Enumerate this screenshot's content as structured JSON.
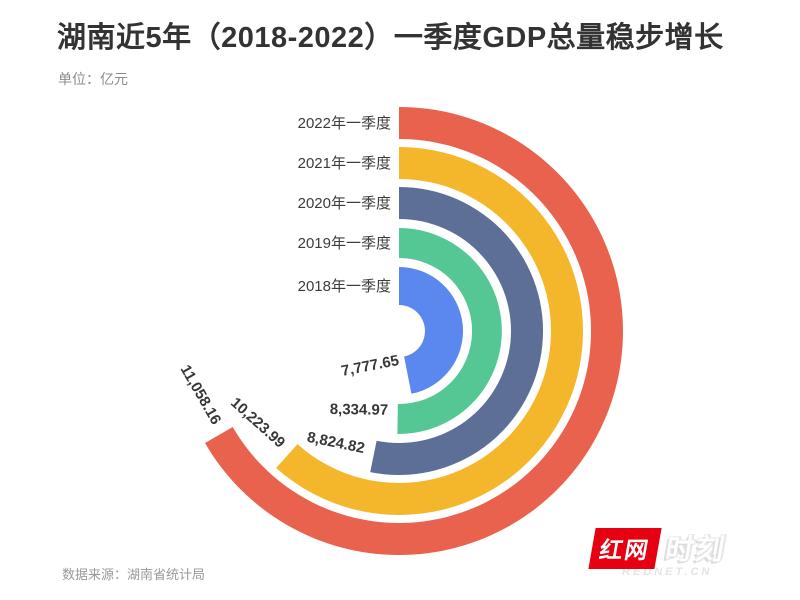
{
  "chart_data": {
    "type": "radial-bar",
    "title": "湖南近5年（2018-2022）一季度GDP总量稳步增长",
    "unit_label": "单位：亿元",
    "categories": [
      "2018年一季度",
      "2019年一季度",
      "2020年一季度",
      "2021年一季度",
      "2022年一季度"
    ],
    "values": [
      7777.65,
      8334.97,
      8824.82,
      10223.99,
      11058.16
    ],
    "value_labels": [
      "7,777.65",
      "8,334.97",
      "8,824.82",
      "10,223.99",
      "11,058.16"
    ],
    "colors": [
      "#5a88ee",
      "#55c795",
      "#5d6f97",
      "#f4b62a",
      "#e8624e"
    ],
    "ring_order": "innermost-to-outermost",
    "start_angle_deg": 0,
    "sweep_direction": "clockwise",
    "max_sweep_deg": 240,
    "max_value_ref": 11058.16,
    "legend_position": "none",
    "grid": false
  },
  "footer": {
    "source_label": "数据来源：湖南省统计局"
  },
  "logo": {
    "primary": "红网",
    "secondary": "时刻",
    "subtext": "REDNET.CN",
    "brand_red": "#e60012"
  }
}
